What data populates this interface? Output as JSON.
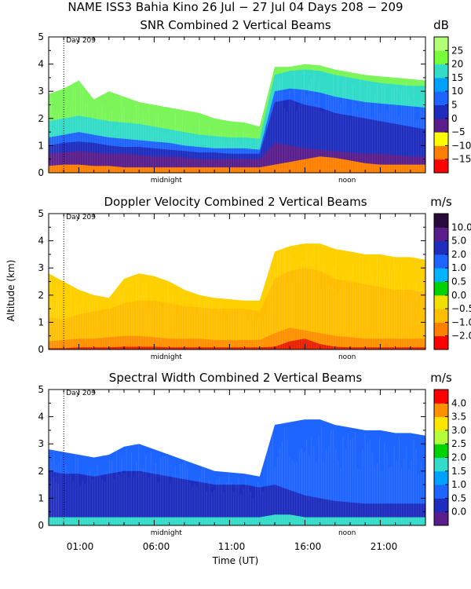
{
  "title": "NAME ISS3 Bahia Kino  26 Jul − 27 Jul 04 Days 208 − 209",
  "day_marker": "Day 209",
  "ylabel": "Altitude (km)",
  "xlabel": "Time (UT)",
  "time_ticks": [
    "01:00",
    "06:00",
    "11:00",
    "16:00",
    "21:00"
  ],
  "time_markers": [
    "midnight",
    "noon"
  ],
  "chart_data": [
    {
      "type": "heatmap",
      "title": "SNR Combined 2 Vertical Beams",
      "units": "dB",
      "ylim": [
        0,
        5
      ],
      "y_ticks": [
        "0",
        "1",
        "2",
        "3",
        "4",
        "5"
      ],
      "x_hours": [
        -1,
        24
      ],
      "colorbar": {
        "labels": [
          "25",
          "20",
          "15",
          "10",
          "5",
          "0",
          "−5",
          "−10",
          "−15"
        ],
        "colors": [
          "#ff0000",
          "#ff7f00",
          "#ffff00",
          "#5a1e8c",
          "#1e2dbe",
          "#1e64ff",
          "#00a0ff",
          "#32dcc8",
          "#78ff3c",
          "#b4ff78"
        ]
      },
      "layers": [
        {
          "color": "#7cf55a",
          "top": [
            2.9,
            3.1,
            3.4,
            2.7,
            3.0,
            2.8,
            2.6,
            2.5,
            2.4,
            2.3,
            2.2,
            2.0,
            1.9,
            1.85,
            1.7,
            3.9,
            3.9,
            4.0,
            3.95,
            3.8,
            3.7,
            3.6,
            3.55,
            3.5,
            3.45,
            3.4
          ]
        },
        {
          "color": "#32dcc8",
          "top": [
            1.9,
            2.0,
            2.1,
            2.0,
            1.9,
            1.85,
            1.8,
            1.7,
            1.6,
            1.5,
            1.4,
            1.35,
            1.3,
            1.3,
            1.25,
            3.6,
            3.75,
            3.8,
            3.75,
            3.6,
            3.5,
            3.4,
            3.3,
            3.25,
            3.2,
            3.2
          ]
        },
        {
          "color": "#1e64ff",
          "top": [
            1.3,
            1.4,
            1.5,
            1.4,
            1.3,
            1.25,
            1.2,
            1.15,
            1.1,
            1.0,
            0.95,
            0.9,
            0.9,
            0.9,
            0.85,
            3.0,
            3.1,
            3.05,
            2.95,
            2.8,
            2.7,
            2.6,
            2.55,
            2.5,
            2.45,
            2.4
          ]
        },
        {
          "color": "#1e2dbe",
          "top": [
            1.0,
            1.1,
            1.15,
            1.1,
            1.0,
            0.95,
            0.95,
            0.9,
            0.85,
            0.8,
            0.75,
            0.75,
            0.7,
            0.7,
            0.7,
            2.6,
            2.7,
            2.5,
            2.4,
            2.2,
            2.1,
            2.0,
            1.9,
            1.8,
            1.7,
            1.6
          ]
        },
        {
          "color": "#5a1e8c",
          "top": [
            0.7,
            0.75,
            0.8,
            0.75,
            0.7,
            0.7,
            0.65,
            0.6,
            0.6,
            0.55,
            0.5,
            0.5,
            0.5,
            0.5,
            0.5,
            1.1,
            1.0,
            0.9,
            0.85,
            0.8,
            0.75,
            0.7,
            0.7,
            0.65,
            0.6,
            0.6
          ]
        },
        {
          "color": "#ff7f00",
          "top": [
            0.25,
            0.3,
            0.3,
            0.25,
            0.25,
            0.2,
            0.2,
            0.2,
            0.2,
            0.2,
            0.2,
            0.2,
            0.2,
            0.2,
            0.2,
            0.3,
            0.4,
            0.5,
            0.6,
            0.55,
            0.45,
            0.35,
            0.3,
            0.3,
            0.3,
            0.3
          ]
        }
      ]
    },
    {
      "type": "heatmap",
      "title": "Doppler Velocity Combined 2 Vertical Beams",
      "units": "m/s",
      "ylim": [
        0,
        5
      ],
      "y_ticks": [
        "0",
        "1",
        "2",
        "3",
        "4",
        "5"
      ],
      "x_hours": [
        -1,
        24
      ],
      "colorbar": {
        "labels": [
          "10.0",
          "5.0",
          "2.0",
          "1.0",
          "0.5",
          "0.0",
          "−0.5",
          "−1.0",
          "−2.0"
        ],
        "colors": [
          "#ff0000",
          "#ff7f00",
          "#ffbe00",
          "#f0e000",
          "#00d200",
          "#00b4ff",
          "#1e64ff",
          "#1e2dbe",
          "#5a1e8c",
          "#2a0a3c"
        ]
      },
      "layers": [
        {
          "color": "#ffd000",
          "top": [
            2.8,
            2.5,
            2.2,
            2.0,
            1.9,
            2.6,
            2.8,
            2.7,
            2.5,
            2.2,
            2.0,
            1.9,
            1.85,
            1.8,
            1.8,
            3.6,
            3.8,
            3.9,
            3.9,
            3.7,
            3.6,
            3.5,
            3.5,
            3.4,
            3.4,
            3.3
          ]
        },
        {
          "color": "#ffbe00",
          "top": [
            1.2,
            1.1,
            1.3,
            1.4,
            1.5,
            1.7,
            1.8,
            1.8,
            1.7,
            1.6,
            1.55,
            1.5,
            1.5,
            1.5,
            1.4,
            2.6,
            2.9,
            3.0,
            2.9,
            2.6,
            2.5,
            2.4,
            2.3,
            2.2,
            2.2,
            2.1
          ]
        },
        {
          "color": "#ff9000",
          "top": [
            0.3,
            0.35,
            0.4,
            0.4,
            0.45,
            0.5,
            0.5,
            0.45,
            0.4,
            0.4,
            0.4,
            0.35,
            0.35,
            0.35,
            0.35,
            0.6,
            0.8,
            0.7,
            0.6,
            0.5,
            0.45,
            0.4,
            0.4,
            0.4,
            0.4,
            0.4
          ]
        },
        {
          "color": "#e82000",
          "top": [
            0.05,
            0.05,
            0.08,
            0.08,
            0.08,
            0.1,
            0.1,
            0.1,
            0.08,
            0.08,
            0.08,
            0.08,
            0.08,
            0.08,
            0.08,
            0.1,
            0.3,
            0.4,
            0.2,
            0.1,
            0.08,
            0.08,
            0.08,
            0.08,
            0.08,
            0.08
          ]
        }
      ]
    },
    {
      "type": "heatmap",
      "title": "Spectral Width Combined 2 Vertical Beams",
      "units": "m/s",
      "ylim": [
        0,
        5
      ],
      "y_ticks": [
        "0",
        "1",
        "2",
        "3",
        "4",
        "5"
      ],
      "x_hours": [
        -1,
        24
      ],
      "colorbar": {
        "labels": [
          "4.0",
          "3.5",
          "3.0",
          "2.5",
          "2.0",
          "1.5",
          "1.0",
          "0.5",
          "0.0"
        ],
        "colors": [
          "#5a1e8c",
          "#1e2dbe",
          "#1e64ff",
          "#00a0ff",
          "#32dcc8",
          "#00d200",
          "#b4ff3c",
          "#ffe600",
          "#ff9000",
          "#ff0000"
        ]
      },
      "layers": [
        {
          "color": "#1e64ff",
          "top": [
            2.8,
            2.7,
            2.6,
            2.5,
            2.6,
            2.9,
            3.0,
            2.8,
            2.6,
            2.4,
            2.2,
            2.0,
            1.95,
            1.9,
            1.8,
            3.7,
            3.8,
            3.9,
            3.9,
            3.7,
            3.6,
            3.5,
            3.5,
            3.4,
            3.4,
            3.3
          ]
        },
        {
          "color": "#1e2dbe",
          "top": [
            2.0,
            1.9,
            1.9,
            1.8,
            1.9,
            2.0,
            2.0,
            1.9,
            1.8,
            1.7,
            1.6,
            1.5,
            1.5,
            1.5,
            1.4,
            1.5,
            1.3,
            1.1,
            1.0,
            0.9,
            0.85,
            0.8,
            0.8,
            0.8,
            0.8,
            0.8
          ]
        },
        {
          "color": "#32dcc8",
          "top": [
            0.3,
            0.3,
            0.3,
            0.3,
            0.3,
            0.3,
            0.3,
            0.3,
            0.3,
            0.3,
            0.3,
            0.3,
            0.3,
            0.3,
            0.3,
            0.4,
            0.4,
            0.3,
            0.3,
            0.3,
            0.3,
            0.3,
            0.3,
            0.3,
            0.3,
            0.3
          ]
        }
      ]
    }
  ]
}
